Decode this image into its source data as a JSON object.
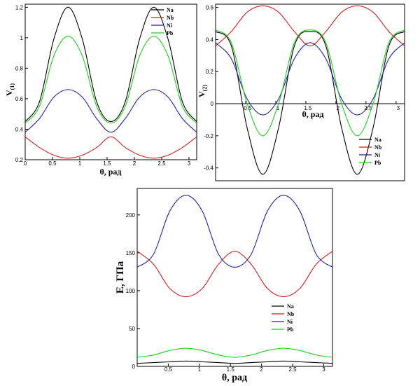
{
  "chart_data": [
    {
      "type": "line",
      "xlabel": "θ, рад",
      "ylabel_main": "V",
      "ylabel_sub": "(1)",
      "xlim": [
        0,
        3.1416
      ],
      "ylim": [
        0.2,
        1.22
      ],
      "xticks": [
        0,
        0.5,
        1,
        1.5,
        2,
        2.5,
        3
      ],
      "xtick_labels": [
        "0",
        "0.5",
        "1",
        "1.5",
        "2",
        "2.5",
        "3"
      ],
      "yticks": [
        0.2,
        0.4,
        0.6,
        0.8,
        1,
        1.2
      ],
      "ytick_labels": [
        "0.2",
        "0.4",
        "0.6",
        "0.8",
        "1",
        "1.2"
      ],
      "legend_position": "top-right",
      "x": [
        0,
        0.2618,
        0.5236,
        0.7854,
        1.0472,
        1.309,
        1.5708,
        1.8326,
        2.0944,
        2.3562,
        2.618,
        2.8798,
        3.1416
      ],
      "series": [
        {
          "name": "Na",
          "color": "#000000",
          "values": [
            0.45,
            0.58,
            0.99,
            1.2,
            0.99,
            0.58,
            0.45,
            0.58,
            0.99,
            1.2,
            0.99,
            0.58,
            0.45
          ]
        },
        {
          "name": "Nb",
          "color": "#cc2222",
          "values": [
            0.35,
            0.28,
            0.23,
            0.21,
            0.23,
            0.28,
            0.35,
            0.28,
            0.23,
            0.21,
            0.23,
            0.28,
            0.35
          ]
        },
        {
          "name": "Ni",
          "color": "#22229a",
          "values": [
            0.38,
            0.47,
            0.61,
            0.66,
            0.61,
            0.47,
            0.38,
            0.47,
            0.61,
            0.66,
            0.61,
            0.47,
            0.38
          ]
        },
        {
          "name": "Pb",
          "color": "#22cc22",
          "values": [
            0.44,
            0.55,
            0.88,
            1.01,
            0.88,
            0.55,
            0.44,
            0.55,
            0.88,
            1.01,
            0.88,
            0.55,
            0.44
          ]
        }
      ]
    },
    {
      "type": "line",
      "xlabel": "θ, рад",
      "ylabel_main": "V",
      "ylabel_sub": "(2)",
      "xlim": [
        0,
        3.1416
      ],
      "ylim": [
        -0.48,
        0.62
      ],
      "xticks": [
        0.5,
        1,
        1.5,
        2,
        2.5,
        3
      ],
      "xtick_labels": [
        "0.5",
        "1",
        "1.5",
        "2",
        "2.5",
        "3"
      ],
      "yticks": [
        -0.4,
        -0.2,
        0,
        0.2,
        0.4,
        0.6
      ],
      "ytick_labels": [
        "-0.4",
        "-0.2",
        "0",
        "0.2",
        "0.4",
        "0.6"
      ],
      "legend_position": "bottom-right",
      "x": [
        0,
        0.2618,
        0.5236,
        0.7854,
        1.0472,
        1.309,
        1.5708,
        1.8326,
        2.0944,
        2.3562,
        2.618,
        2.8798,
        3.1416
      ],
      "series": [
        {
          "name": "Na",
          "color": "#000000",
          "values": [
            0.45,
            0.36,
            -0.15,
            -0.44,
            -0.15,
            0.36,
            0.45,
            0.36,
            -0.15,
            -0.44,
            -0.15,
            0.36,
            0.45
          ]
        },
        {
          "name": "Nb",
          "color": "#cc2222",
          "values": [
            0.36,
            0.45,
            0.57,
            0.61,
            0.57,
            0.45,
            0.36,
            0.45,
            0.57,
            0.61,
            0.57,
            0.45,
            0.36
          ]
        },
        {
          "name": "Ni",
          "color": "#22229a",
          "values": [
            0.38,
            0.28,
            0.03,
            -0.07,
            0.03,
            0.28,
            0.38,
            0.28,
            0.03,
            -0.07,
            0.03,
            0.28,
            0.38
          ]
        },
        {
          "name": "Pb",
          "color": "#22cc22",
          "values": [
            0.46,
            0.38,
            0.0,
            -0.2,
            0.0,
            0.38,
            0.46,
            0.38,
            0.0,
            -0.2,
            0.0,
            0.38,
            0.46
          ]
        }
      ]
    },
    {
      "type": "line",
      "xlabel": "θ, рад",
      "ylabel_main": "E, ГПа",
      "ylabel_sub": "",
      "xlim": [
        0,
        3.1416
      ],
      "ylim": [
        0,
        235
      ],
      "xticks": [
        0.5,
        1,
        1.5,
        2,
        2.5,
        3
      ],
      "xtick_labels": [
        "0.5",
        "1",
        "1.5",
        "2",
        "2.5",
        "3"
      ],
      "yticks": [
        0,
        50,
        100,
        150,
        200
      ],
      "ytick_labels": [
        "0",
        "50",
        "100",
        "150",
        "200"
      ],
      "legend_position": "bottom-right",
      "x": [
        0,
        0.2618,
        0.5236,
        0.7854,
        1.0472,
        1.309,
        1.5708,
        1.8326,
        2.0944,
        2.3562,
        2.618,
        2.8798,
        3.1416
      ],
      "series": [
        {
          "name": "Na",
          "color": "#000000",
          "values": [
            4,
            5,
            6,
            7,
            6,
            5,
            4,
            5,
            6,
            7,
            6,
            5,
            4
          ]
        },
        {
          "name": "Nb",
          "color": "#cc2222",
          "values": [
            152,
            135,
            103,
            92,
            103,
            135,
            152,
            135,
            103,
            92,
            103,
            135,
            152
          ]
        },
        {
          "name": "Ni",
          "color": "#22229a",
          "values": [
            131,
            148,
            205,
            226,
            205,
            148,
            131,
            148,
            205,
            226,
            205,
            148,
            131
          ]
        },
        {
          "name": "Pb",
          "color": "#22cc22",
          "values": [
            12,
            15,
            21,
            24,
            21,
            15,
            12,
            15,
            21,
            24,
            21,
            15,
            12
          ]
        }
      ]
    }
  ]
}
